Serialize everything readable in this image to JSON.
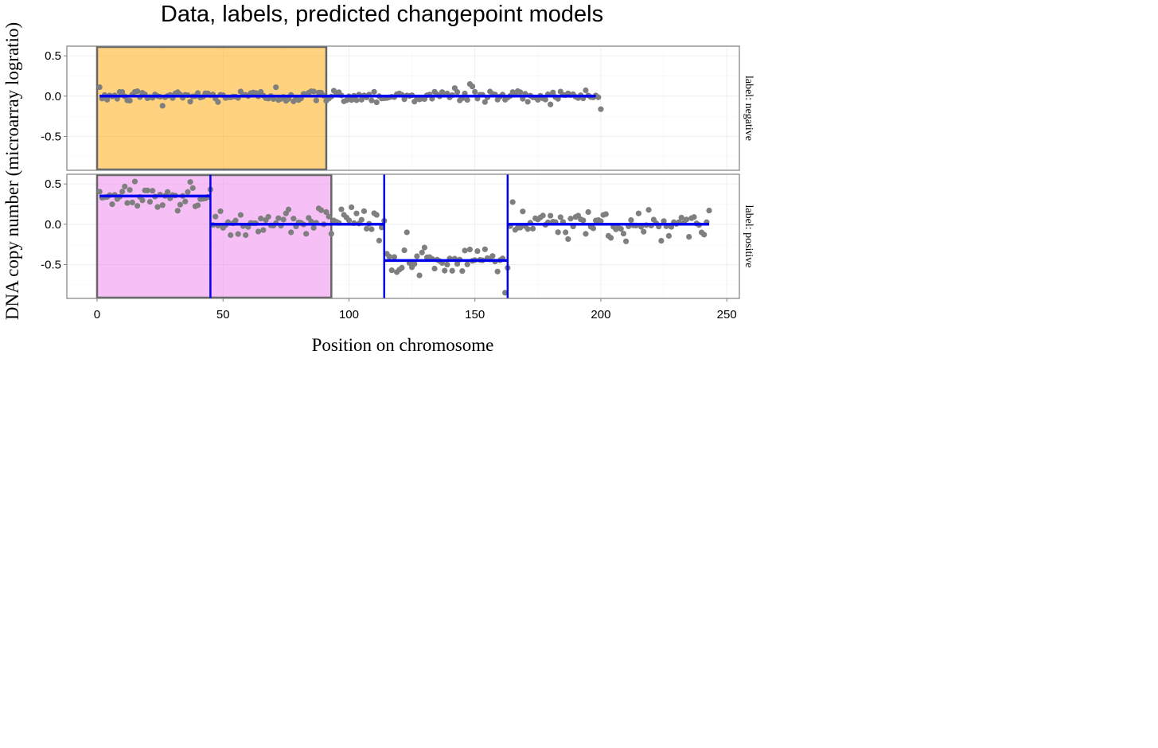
{
  "chart_data": {
    "type": "scatter",
    "title": "Data, labels, predicted changepoint models",
    "xlabel": "Position on chromosome",
    "ylabel": "DNA copy number (microarray logratio)",
    "xlim": [
      -12,
      255
    ],
    "x_ticks": [
      0,
      50,
      100,
      150,
      200,
      250
    ],
    "grid": true,
    "colors": {
      "points": "#7f7f7f",
      "segments": "#0000ee",
      "negative_region": "#ffa500",
      "positive_region": "#ee82ee",
      "panel_border": "#808080",
      "region_border": "#666666"
    },
    "panels": [
      {
        "strip_label": "label: negative",
        "ylim": [
          -0.92,
          0.62
        ],
        "y_ticks": [
          0.5,
          0.0,
          -0.5
        ],
        "y_tick_labels": [
          "0.5",
          "0.0",
          "-0.5"
        ],
        "n_points": 200,
        "regions": [
          {
            "label": "negative",
            "xmin": 0,
            "xmax": 91
          }
        ],
        "segments": [
          {
            "x_start": 1,
            "x_end": 198,
            "mean": 0.0
          }
        ],
        "changepoints": [],
        "noise": 0.04,
        "outliers": [
          {
            "x": 148,
            "y": 0.15
          },
          {
            "x": 149,
            "y": 0.12
          },
          {
            "x": 71,
            "y": 0.11
          },
          {
            "x": 26,
            "y": -0.12
          },
          {
            "x": 142,
            "y": 0.1
          }
        ]
      },
      {
        "strip_label": "label: positive",
        "ylim": [
          -0.92,
          0.62
        ],
        "y_ticks": [
          0.5,
          0.0,
          -0.5
        ],
        "y_tick_labels": [
          "0.5",
          "0.0",
          "-0.5"
        ],
        "n_points": 243,
        "regions": [
          {
            "label": "positive",
            "xmin": 0,
            "xmax": 93
          }
        ],
        "segments": [
          {
            "x_start": 1,
            "x_end": 45,
            "mean": 0.35
          },
          {
            "x_start": 45,
            "x_end": 114,
            "mean": 0.0
          },
          {
            "x_start": 114,
            "x_end": 163,
            "mean": -0.45
          },
          {
            "x_start": 163,
            "x_end": 243,
            "mean": 0.0
          }
        ],
        "changepoints": [
          45,
          114,
          163
        ],
        "noise": 0.09,
        "outliers": [
          {
            "x": 162,
            "y": -0.85
          },
          {
            "x": 15,
            "y": 0.53
          },
          {
            "x": 123,
            "y": -0.1
          },
          {
            "x": 243,
            "y": 0.17
          }
        ]
      }
    ]
  }
}
